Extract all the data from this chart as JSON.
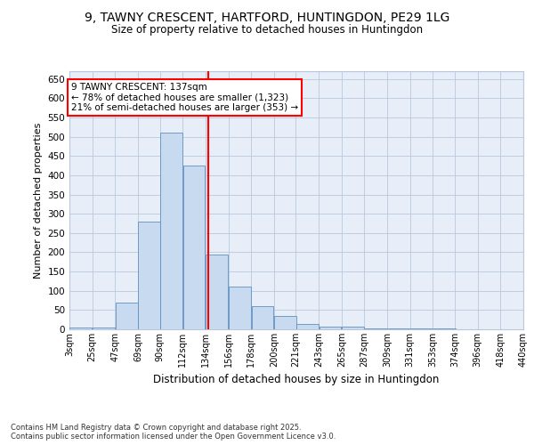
{
  "title": "9, TAWNY CRESCENT, HARTFORD, HUNTINGDON, PE29 1LG",
  "subtitle": "Size of property relative to detached houses in Huntingdon",
  "xlabel": "Distribution of detached houses by size in Huntingdon",
  "ylabel": "Number of detached properties",
  "bar_color": "#c8daf0",
  "bar_edge_color": "#6090c0",
  "grid_color": "#b8c8dc",
  "background_color": "#e8eef8",
  "annotation_line_color": "red",
  "annotation_box_color": "red",
  "annotation_text": "9 TAWNY CRESCENT: 137sqm\n← 78% of detached houses are smaller (1,323)\n21% of semi-detached houses are larger (353) →",
  "property_size": 137,
  "bins": [
    3,
    25,
    47,
    69,
    90,
    112,
    134,
    156,
    178,
    200,
    221,
    243,
    265,
    287,
    309,
    331,
    353,
    374,
    396,
    418,
    440
  ],
  "bin_labels": [
    "3sqm",
    "25sqm",
    "47sqm",
    "69sqm",
    "90sqm",
    "112sqm",
    "134sqm",
    "156sqm",
    "178sqm",
    "200sqm",
    "221sqm",
    "243sqm",
    "265sqm",
    "287sqm",
    "309sqm",
    "331sqm",
    "353sqm",
    "374sqm",
    "396sqm",
    "418sqm",
    "440sqm"
  ],
  "values": [
    5,
    5,
    70,
    280,
    510,
    425,
    195,
    110,
    60,
    35,
    15,
    8,
    8,
    3,
    3,
    2,
    2,
    1,
    1,
    1
  ],
  "ylim": [
    0,
    670
  ],
  "yticks": [
    0,
    50,
    100,
    150,
    200,
    250,
    300,
    350,
    400,
    450,
    500,
    550,
    600,
    650
  ],
  "footer": "Contains HM Land Registry data © Crown copyright and database right 2025.\nContains public sector information licensed under the Open Government Licence v3.0.",
  "figsize": [
    6.0,
    5.0
  ],
  "dpi": 100
}
